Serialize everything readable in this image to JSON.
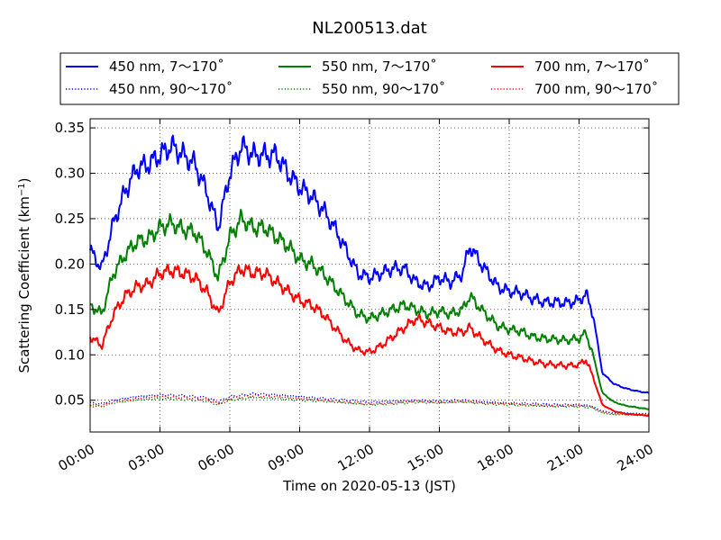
{
  "chart_data": {
    "type": "line",
    "title": "NL200513.dat",
    "xlabel": "Time on 2020-05-13 (JST)",
    "ylabel_main": "Scattering Coefficient (km",
    "ylabel_sup": "−1",
    "ylabel_close": ")",
    "xlim": [
      0,
      24
    ],
    "ylim": [
      0.015,
      0.36
    ],
    "x_ticks": [
      0,
      3,
      6,
      9,
      12,
      15,
      18,
      21,
      24
    ],
    "x_tick_labels": [
      "00:00",
      "03:00",
      "06:00",
      "09:00",
      "12:00",
      "15:00",
      "18:00",
      "21:00",
      "24:00"
    ],
    "y_ticks": [
      0.05,
      0.1,
      0.15,
      0.2,
      0.25,
      0.3,
      0.35
    ],
    "y_tick_labels": [
      "0.05",
      "0.10",
      "0.15",
      "0.20",
      "0.25",
      "0.30",
      "0.35"
    ],
    "grid": true,
    "legend_position": "top, above plot",
    "series": [
      {
        "name": "450 nm, 7～170˚",
        "color": "#0000ff",
        "dash": "solid",
        "x": [
          0,
          0.5,
          1,
          1.5,
          2,
          2.5,
          3,
          3.5,
          4,
          4.5,
          5,
          5.5,
          6,
          6.5,
          7,
          7.5,
          8,
          8.5,
          9,
          9.5,
          10,
          10.5,
          11,
          11.5,
          12,
          12.5,
          13,
          13.5,
          14,
          14.5,
          15,
          15.5,
          16,
          16.3,
          16.8,
          17.5,
          18,
          18.5,
          19,
          19.5,
          20,
          20.5,
          21,
          21.3,
          21.6,
          22,
          22.5,
          23,
          23.5,
          24
        ],
        "y": [
          0.215,
          0.195,
          0.245,
          0.28,
          0.305,
          0.31,
          0.32,
          0.33,
          0.32,
          0.31,
          0.28,
          0.24,
          0.3,
          0.33,
          0.32,
          0.32,
          0.32,
          0.3,
          0.285,
          0.275,
          0.26,
          0.24,
          0.215,
          0.19,
          0.185,
          0.19,
          0.195,
          0.195,
          0.18,
          0.175,
          0.185,
          0.18,
          0.19,
          0.22,
          0.2,
          0.175,
          0.17,
          0.168,
          0.162,
          0.158,
          0.158,
          0.157,
          0.16,
          0.167,
          0.145,
          0.08,
          0.068,
          0.063,
          0.06,
          0.058
        ]
      },
      {
        "name": "450 nm, 90～170˚",
        "color": "#0000ff",
        "dash": "dotted",
        "x": [
          0,
          0.5,
          1,
          2,
          3,
          4,
          5,
          5.5,
          6,
          7,
          8,
          9,
          10,
          11,
          12,
          13,
          14,
          15,
          16,
          17,
          18,
          19,
          20,
          21,
          21.5,
          22,
          22.5,
          23,
          24
        ],
        "y": [
          0.047,
          0.046,
          0.05,
          0.054,
          0.056,
          0.055,
          0.053,
          0.048,
          0.054,
          0.057,
          0.056,
          0.054,
          0.052,
          0.05,
          0.048,
          0.049,
          0.05,
          0.049,
          0.05,
          0.048,
          0.047,
          0.046,
          0.045,
          0.045,
          0.044,
          0.038,
          0.036,
          0.036,
          0.035
        ]
      },
      {
        "name": "550 nm, 7～170˚",
        "color": "#008000",
        "dash": "solid",
        "x": [
          0,
          0.5,
          1,
          1.5,
          2,
          2.5,
          3,
          3.5,
          4,
          4.5,
          5,
          5.5,
          6,
          6.5,
          7,
          7.5,
          8,
          8.5,
          9,
          9.5,
          10,
          10.5,
          11,
          11.5,
          12,
          12.5,
          13,
          13.5,
          14,
          14.5,
          15,
          15.5,
          16,
          16.3,
          16.8,
          17.5,
          18,
          18.5,
          19,
          19.5,
          20,
          20.5,
          21,
          21.3,
          21.6,
          22,
          22.5,
          23,
          23.5,
          24
        ],
        "y": [
          0.155,
          0.145,
          0.19,
          0.21,
          0.225,
          0.228,
          0.24,
          0.245,
          0.238,
          0.235,
          0.215,
          0.185,
          0.23,
          0.25,
          0.24,
          0.24,
          0.23,
          0.22,
          0.205,
          0.2,
          0.19,
          0.175,
          0.16,
          0.145,
          0.14,
          0.145,
          0.15,
          0.155,
          0.15,
          0.145,
          0.148,
          0.145,
          0.15,
          0.165,
          0.15,
          0.132,
          0.128,
          0.126,
          0.12,
          0.118,
          0.117,
          0.116,
          0.118,
          0.124,
          0.1,
          0.058,
          0.048,
          0.044,
          0.042,
          0.04
        ]
      },
      {
        "name": "550 nm, 90～170˚",
        "color": "#008000",
        "dash": "dotted",
        "x": [
          0,
          0.5,
          1,
          2,
          3,
          4,
          5,
          5.5,
          6,
          7,
          8,
          9,
          10,
          11,
          12,
          13,
          14,
          15,
          16,
          17,
          18,
          19,
          20,
          21,
          21.5,
          22,
          22.5,
          23,
          24
        ],
        "y": [
          0.044,
          0.043,
          0.047,
          0.05,
          0.052,
          0.051,
          0.049,
          0.045,
          0.05,
          0.053,
          0.052,
          0.05,
          0.049,
          0.047,
          0.045,
          0.046,
          0.048,
          0.047,
          0.048,
          0.046,
          0.045,
          0.044,
          0.043,
          0.043,
          0.042,
          0.036,
          0.034,
          0.034,
          0.033
        ]
      },
      {
        "name": "700 nm, 7～170˚",
        "color": "#ff0000",
        "dash": "solid",
        "x": [
          0,
          0.5,
          1,
          1.5,
          2,
          2.5,
          3,
          3.5,
          4,
          4.5,
          5,
          5.5,
          6,
          6.5,
          7,
          7.5,
          8,
          8.5,
          9,
          9.5,
          10,
          10.5,
          11,
          11.5,
          12,
          12.5,
          13,
          13.5,
          14,
          14.5,
          15,
          15.5,
          16,
          16.3,
          16.8,
          17.5,
          18,
          18.5,
          19,
          19.5,
          20,
          20.5,
          21,
          21.3,
          21.6,
          22,
          22.5,
          23,
          23.5,
          24
        ],
        "y": [
          0.12,
          0.11,
          0.145,
          0.165,
          0.175,
          0.178,
          0.19,
          0.193,
          0.19,
          0.185,
          0.17,
          0.145,
          0.18,
          0.195,
          0.19,
          0.19,
          0.18,
          0.17,
          0.16,
          0.155,
          0.145,
          0.13,
          0.115,
          0.105,
          0.103,
          0.11,
          0.12,
          0.13,
          0.14,
          0.135,
          0.13,
          0.125,
          0.125,
          0.13,
          0.118,
          0.105,
          0.1,
          0.097,
          0.093,
          0.09,
          0.089,
          0.088,
          0.089,
          0.095,
          0.075,
          0.045,
          0.038,
          0.035,
          0.034,
          0.033
        ]
      },
      {
        "name": "700 nm, 90～170˚",
        "color": "#ff0000",
        "dash": "dotted",
        "x": [
          0,
          0.5,
          1,
          2,
          3,
          4,
          5,
          5.5,
          6,
          7,
          8,
          9,
          10,
          11,
          12,
          13,
          14,
          15,
          16,
          17,
          18,
          19,
          20,
          21,
          21.5,
          22,
          22.5,
          23,
          24
        ],
        "y": [
          0.045,
          0.044,
          0.048,
          0.052,
          0.054,
          0.053,
          0.051,
          0.046,
          0.052,
          0.055,
          0.054,
          0.052,
          0.05,
          0.048,
          0.046,
          0.047,
          0.049,
          0.048,
          0.049,
          0.047,
          0.046,
          0.045,
          0.044,
          0.044,
          0.043,
          0.037,
          0.035,
          0.035,
          0.034
        ]
      }
    ]
  }
}
